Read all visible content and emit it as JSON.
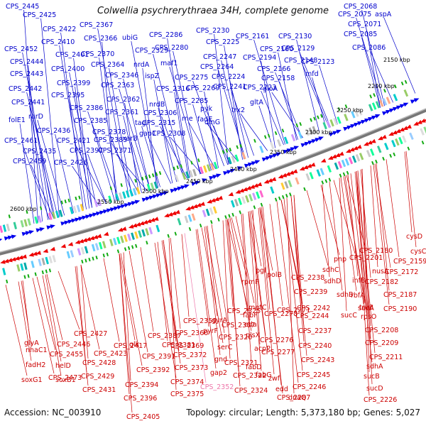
{
  "title": "Colwellia psychrerythraea 34H, complete genome",
  "footer": {
    "accession": "Accession: NC_003910",
    "summary": "Topology: circular; Length: 5,373,180 bp; Genes: 5,027"
  },
  "kbp_labels": [
    "2150 kbp",
    "2200 kbp",
    "2250 kbp",
    "2300 kbp",
    "2350 kbp",
    "2400 kbp",
    "2450 kbp",
    "2500 kbp",
    "2550 kbp",
    "2600 kbp"
  ],
  "top_genes": [
    "CPS_2445",
    "CPS_2425",
    "CPS_2422",
    "CPS_2410",
    "CPS_2452",
    "CPS_2444",
    "CPS_2401",
    "CPS_2443",
    "CPS_2400",
    "CPS_2442",
    "CPS_2399",
    "CPS_2441",
    "CPS_2395",
    "rarD",
    "CPS_2386",
    "folE1",
    "CPS_2436",
    "CPS_2385",
    "CPS_2461",
    "CPS_2421",
    "CPS_2435",
    "CPS_2397",
    "CPS_2459",
    "CPS_2426",
    "CPS_2367",
    "CPS_2366",
    "CPS_2370",
    "CPS_2364",
    "CPS_2346",
    "CPS_2363",
    "CPS_2362",
    "CPS_2361",
    "CPS_2378",
    "CPS_2383",
    "CPS_2371",
    "xarB",
    "tag",
    "gap1",
    "ubiG",
    "CPS_2329",
    "nrdA",
    "ispZ",
    "CPS_2286",
    "CPS_2280",
    "maf1",
    "CPS_2316",
    "nrdB",
    "CPS_2306",
    "CPS_2315",
    "CPS_2308",
    "CPS_2230",
    "CPS_2225",
    "CPS_2247",
    "CPS_2264",
    "CPS_2275",
    "CPS_2269",
    "CPS_2285",
    "pyk",
    "rne",
    "fadE",
    "dinG",
    "CPS_2224",
    "CPS_2241",
    "trx2",
    "CPS_2161",
    "CPS_2194",
    "CPS_2160",
    "CPS_2223",
    "CPS_2166",
    "gloA",
    "gltA",
    "CPS_2158",
    "CPS_2130",
    "CPS_2148",
    "CPS_2129",
    "mfd",
    "CPS_2123",
    "CPS_2068",
    "CPS_2075",
    "aspA",
    "CPS_2071",
    "CPS_2085",
    "CPS_2086"
  ],
  "bottom_genes": [
    "cysD",
    "cysC",
    "CPS_2159",
    "CPS_2172",
    "CPS_2180",
    "CPS_2201",
    "nusA",
    "CPS_2182",
    "CPS_2187",
    "CPS_2190",
    "pnp",
    "sdhC",
    "sdhD",
    "infB",
    "sdhB",
    "rbfA",
    "sucA",
    "truB",
    "sucC",
    "rpsO",
    "CPS_2208",
    "CPS_2209",
    "CPS_2211",
    "sdhA",
    "sucB",
    "sucD",
    "CPS_2226",
    "CPS_2238",
    "CPS_2239",
    "CPS_2242",
    "CPS_2244",
    "CPS_2237",
    "CPS_2240",
    "CPS_2243",
    "CPS_2245",
    "CPS_2246",
    "dnaQ",
    "pgl",
    "polB",
    "rpmF",
    "metC",
    "fabF",
    "eda",
    "CPS_2278",
    "CPS_2271",
    "CPS_2276",
    "CPS_2277",
    "plsX",
    "acpP",
    "fabD",
    "fabG",
    "zwf",
    "edd",
    "CPS_2287",
    "CPS_2325",
    "gyrA",
    "pyrF",
    "CPS_2307",
    "CPS_2320",
    "serC",
    "CPS_2321",
    "CPS_2322",
    "CPS_2324",
    "gnd",
    "gap2",
    "CPS_2352",
    "CPS_2359",
    "CPS_2360",
    "CPS_2369",
    "CPS_2372",
    "CPS_2373",
    "CPS_2374",
    "CPS_2375",
    "CPS_2381",
    "CPS_2387",
    "glk",
    "CPS_2391",
    "CPS_2392",
    "CPS_2394",
    "CPS_2396",
    "CPS_2405",
    "CPS_2417",
    "CPS_2423",
    "CPS_2427",
    "CPS_2428",
    "CPS_2429",
    "CPS_2431",
    "CPS_2446",
    "CPS_2455",
    "CPS_2473",
    "glyA",
    "nhaC1",
    "fadH2",
    "helD",
    "soxB1",
    "soxG1"
  ]
}
